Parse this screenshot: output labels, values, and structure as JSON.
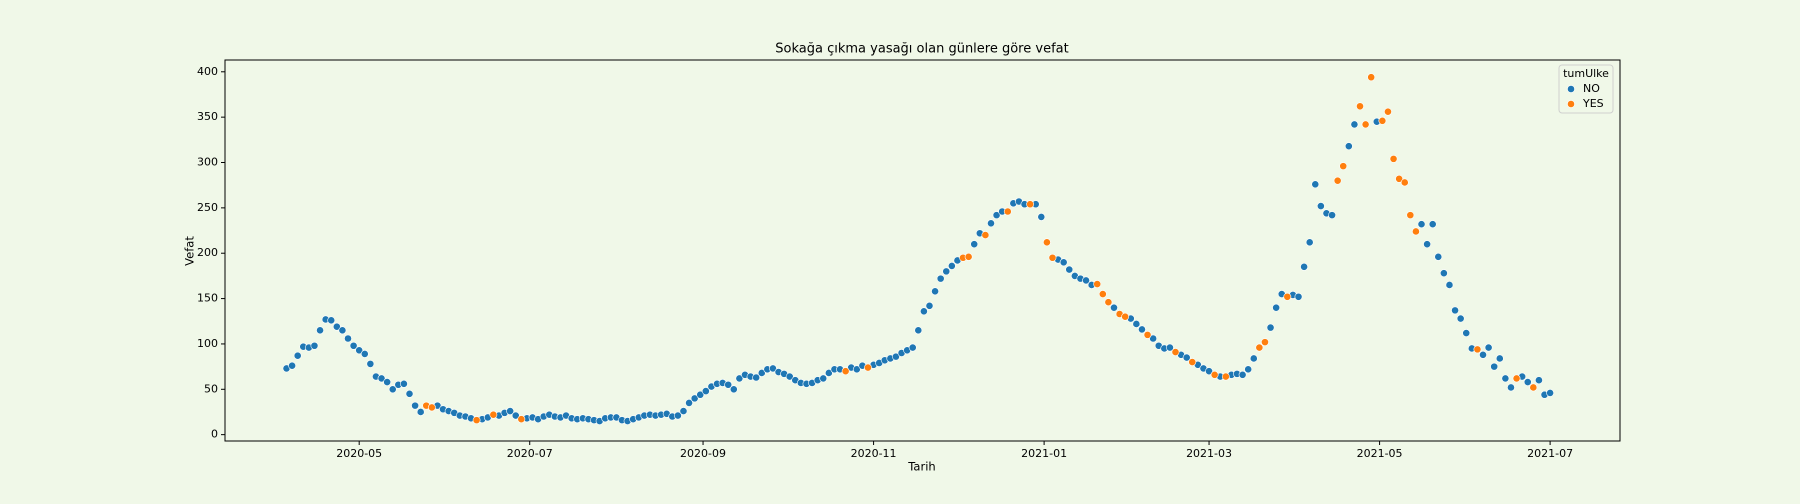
{
  "chart_data": {
    "type": "scatter",
    "title": "Sokağa çıkma yasağı olan günlere göre vefat",
    "x_label": "Tarih",
    "y_label": "Vefat",
    "legend_title": "tumUlke",
    "legend": "upper right",
    "xlim": [
      "2020-03-14",
      "2021-07-26"
    ],
    "ylim": [
      -7,
      413
    ],
    "xticks": [
      {
        "value": "2020-05-01",
        "label": "2020-05"
      },
      {
        "value": "2020-07-01",
        "label": "2020-07"
      },
      {
        "value": "2020-09-01",
        "label": "2020-09"
      },
      {
        "value": "2020-11-01",
        "label": "2020-11"
      },
      {
        "value": "2021-01-01",
        "label": "2021-01"
      },
      {
        "value": "2021-03-01",
        "label": "2021-03"
      },
      {
        "value": "2021-05-01",
        "label": "2021-05"
      },
      {
        "value": "2021-07-01",
        "label": "2021-07"
      }
    ],
    "yticks": [
      0,
      50,
      100,
      150,
      200,
      250,
      300,
      350,
      400
    ],
    "series": [
      {
        "name": "NO",
        "color": "#1f77b4",
        "x": [
          "2020-04-05",
          "2020-04-07",
          "2020-04-09",
          "2020-04-11",
          "2020-04-13",
          "2020-04-15",
          "2020-04-17",
          "2020-04-19",
          "2020-04-21",
          "2020-04-23",
          "2020-04-25",
          "2020-04-27",
          "2020-04-29",
          "2020-05-01",
          "2020-05-03",
          "2020-05-05",
          "2020-05-07",
          "2020-05-09",
          "2020-05-11",
          "2020-05-13",
          "2020-05-15",
          "2020-05-17",
          "2020-05-19",
          "2020-05-21",
          "2020-05-23",
          "2020-05-29",
          "2020-05-31",
          "2020-06-02",
          "2020-06-04",
          "2020-06-06",
          "2020-06-08",
          "2020-06-10",
          "2020-06-14",
          "2020-06-16",
          "2020-06-20",
          "2020-06-22",
          "2020-06-24",
          "2020-06-26",
          "2020-06-30",
          "2020-07-02",
          "2020-07-04",
          "2020-07-06",
          "2020-07-08",
          "2020-07-10",
          "2020-07-12",
          "2020-07-14",
          "2020-07-16",
          "2020-07-18",
          "2020-07-20",
          "2020-07-22",
          "2020-07-24",
          "2020-07-26",
          "2020-07-28",
          "2020-07-30",
          "2020-08-01",
          "2020-08-03",
          "2020-08-05",
          "2020-08-07",
          "2020-08-09",
          "2020-08-11",
          "2020-08-13",
          "2020-08-15",
          "2020-08-17",
          "2020-08-19",
          "2020-08-21",
          "2020-08-23",
          "2020-08-25",
          "2020-08-27",
          "2020-08-29",
          "2020-08-31",
          "2020-09-02",
          "2020-09-04",
          "2020-09-06",
          "2020-09-08",
          "2020-09-10",
          "2020-09-12",
          "2020-09-14",
          "2020-09-16",
          "2020-09-18",
          "2020-09-20",
          "2020-09-22",
          "2020-09-24",
          "2020-09-26",
          "2020-09-28",
          "2020-09-30",
          "2020-10-02",
          "2020-10-04",
          "2020-10-06",
          "2020-10-08",
          "2020-10-10",
          "2020-10-12",
          "2020-10-14",
          "2020-10-16",
          "2020-10-18",
          "2020-10-20",
          "2020-10-24",
          "2020-10-26",
          "2020-10-28",
          "2020-11-01",
          "2020-11-03",
          "2020-11-05",
          "2020-11-07",
          "2020-11-09",
          "2020-11-11",
          "2020-11-13",
          "2020-11-15",
          "2020-11-17",
          "2020-11-19",
          "2020-11-21",
          "2020-11-23",
          "2020-11-25",
          "2020-11-27",
          "2020-11-29",
          "2020-12-01",
          "2020-12-07",
          "2020-12-09",
          "2020-12-13",
          "2020-12-15",
          "2020-12-17",
          "2020-12-21",
          "2020-12-23",
          "2020-12-25",
          "2020-12-29",
          "2020-12-31",
          "2021-01-06",
          "2021-01-08",
          "2021-01-10",
          "2021-01-12",
          "2021-01-14",
          "2021-01-16",
          "2021-01-18",
          "2021-01-26",
          "2021-02-01",
          "2021-02-03",
          "2021-02-05",
          "2021-02-09",
          "2021-02-11",
          "2021-02-13",
          "2021-02-15",
          "2021-02-19",
          "2021-02-21",
          "2021-02-25",
          "2021-02-27",
          "2021-03-01",
          "2021-03-05",
          "2021-03-09",
          "2021-03-11",
          "2021-03-13",
          "2021-03-15",
          "2021-03-17",
          "2021-03-23",
          "2021-03-25",
          "2021-03-27",
          "2021-03-31",
          "2021-04-02",
          "2021-04-04",
          "2021-04-06",
          "2021-04-08",
          "2021-04-10",
          "2021-04-12",
          "2021-04-14",
          "2021-04-20",
          "2021-04-22",
          "2021-04-30",
          "2021-05-16",
          "2021-05-18",
          "2021-05-20",
          "2021-05-22",
          "2021-05-24",
          "2021-05-26",
          "2021-05-28",
          "2021-05-30",
          "2021-06-01",
          "2021-06-03",
          "2021-06-07",
          "2021-06-09",
          "2021-06-11",
          "2021-06-13",
          "2021-06-15",
          "2021-06-17",
          "2021-06-21",
          "2021-06-23",
          "2021-06-27",
          "2021-06-29",
          "2021-07-01"
        ],
        "values": [
          73,
          76,
          87,
          97,
          96,
          98,
          115,
          127,
          126,
          119,
          115,
          106,
          98,
          93,
          89,
          78,
          64,
          62,
          58,
          50,
          55,
          56,
          45,
          32,
          25,
          32,
          28,
          26,
          24,
          21,
          20,
          18,
          17,
          19,
          21,
          24,
          26,
          21,
          18,
          19,
          17,
          20,
          22,
          20,
          19,
          21,
          18,
          17,
          18,
          17,
          16,
          15,
          18,
          19,
          19,
          16,
          15,
          17,
          19,
          21,
          22,
          21,
          22,
          23,
          20,
          21,
          26,
          35,
          40,
          44,
          48,
          53,
          56,
          57,
          55,
          50,
          62,
          66,
          64,
          63,
          68,
          72,
          73,
          69,
          67,
          64,
          60,
          57,
          56,
          57,
          60,
          62,
          68,
          72,
          72,
          74,
          72,
          76,
          77,
          79,
          82,
          84,
          86,
          90,
          93,
          96,
          115,
          136,
          142,
          158,
          172,
          180,
          186,
          192,
          210,
          222,
          233,
          242,
          246,
          255,
          257,
          254,
          254,
          240,
          193,
          190,
          182,
          175,
          172,
          170,
          165,
          140,
          128,
          122,
          116,
          106,
          98,
          95,
          96,
          88,
          85,
          77,
          73,
          70,
          64,
          66,
          67,
          66,
          72,
          84,
          118,
          140,
          155,
          154,
          152,
          185,
          212,
          276,
          252,
          244,
          242,
          318,
          342,
          345,
          232,
          210,
          232,
          196,
          178,
          165,
          137,
          128,
          112,
          95,
          88,
          96,
          75,
          84,
          62,
          52,
          64,
          58,
          60,
          44,
          46
        ]
      },
      {
        "name": "YES",
        "color": "#ff7f0e",
        "x": [
          "2020-05-25",
          "2020-05-27",
          "2020-06-12",
          "2020-06-18",
          "2020-06-28",
          "2020-10-22",
          "2020-10-30",
          "2020-12-03",
          "2020-12-05",
          "2020-12-11",
          "2020-12-19",
          "2020-12-27",
          "2021-01-02",
          "2021-01-04",
          "2021-01-20",
          "2021-01-22",
          "2021-01-24",
          "2021-01-28",
          "2021-01-30",
          "2021-02-07",
          "2021-02-17",
          "2021-02-23",
          "2021-03-03",
          "2021-03-07",
          "2021-03-19",
          "2021-03-21",
          "2021-03-29",
          "2021-04-16",
          "2021-04-18",
          "2021-04-24",
          "2021-04-26",
          "2021-04-28",
          "2021-05-02",
          "2021-05-04",
          "2021-05-06",
          "2021-05-08",
          "2021-05-10",
          "2021-05-12",
          "2021-05-14",
          "2021-06-05",
          "2021-06-19",
          "2021-06-25"
        ],
        "values": [
          32,
          30,
          16,
          22,
          17,
          70,
          74,
          195,
          196,
          220,
          246,
          254,
          212,
          195,
          166,
          155,
          146,
          133,
          130,
          110,
          91,
          80,
          66,
          64,
          96,
          102,
          152,
          280,
          296,
          362,
          342,
          394,
          346,
          356,
          304,
          282,
          278,
          242,
          224,
          94,
          62,
          52
        ]
      }
    ]
  }
}
